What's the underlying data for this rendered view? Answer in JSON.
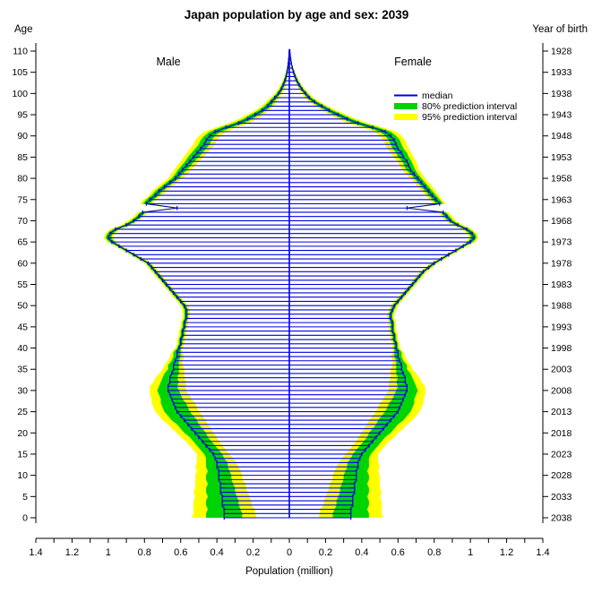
{
  "title": "Japan population by age and sex: 2039",
  "labels": {
    "age_axis": "Age",
    "birth_axis": "Year of birth",
    "x_axis": "Population (million)",
    "male": "Male",
    "female": "Female"
  },
  "legend": [
    {
      "label": "median",
      "color": "#0000e0",
      "type": "line"
    },
    {
      "label": "80% prediction interval",
      "color": "#00d400",
      "type": "band"
    },
    {
      "label": "95% prediction interval",
      "color": "#ffff00",
      "type": "band"
    }
  ],
  "chart_data": {
    "type": "population-pyramid",
    "title": "Japan population by age and sex: 2039",
    "year": 2039,
    "units": "million",
    "xlabel": "Population (million)",
    "age_min": 0,
    "age_max": 110,
    "age_tick_step": 5,
    "birth_year_age0": 2038,
    "x_max": 1.4,
    "x_tick_labels": [
      "1.4",
      "1.2",
      "1",
      "0.8",
      "0.6",
      "0.4",
      "0.2",
      "0",
      "0.2",
      "0.4",
      "0.6",
      "0.8",
      "1",
      "1.2",
      "1.4"
    ],
    "colors": {
      "median": "#0000e0",
      "band80": "#00d400",
      "band95": "#ffff00"
    },
    "male_median": [
      0.36,
      0.36,
      0.36,
      0.37,
      0.37,
      0.37,
      0.38,
      0.38,
      0.38,
      0.39,
      0.39,
      0.39,
      0.4,
      0.4,
      0.41,
      0.42,
      0.44,
      0.46,
      0.48,
      0.5,
      0.52,
      0.54,
      0.56,
      0.58,
      0.6,
      0.62,
      0.63,
      0.64,
      0.65,
      0.66,
      0.67,
      0.67,
      0.66,
      0.66,
      0.65,
      0.64,
      0.64,
      0.63,
      0.62,
      0.62,
      0.61,
      0.6,
      0.6,
      0.59,
      0.59,
      0.58,
      0.58,
      0.57,
      0.57,
      0.57,
      0.58,
      0.6,
      0.62,
      0.64,
      0.66,
      0.68,
      0.7,
      0.72,
      0.74,
      0.76,
      0.78,
      0.82,
      0.86,
      0.9,
      0.94,
      0.98,
      1.0,
      0.99,
      0.96,
      0.9,
      0.86,
      0.83,
      0.81,
      0.62,
      0.79,
      0.77,
      0.74,
      0.72,
      0.69,
      0.66,
      0.63,
      0.61,
      0.59,
      0.57,
      0.55,
      0.53,
      0.51,
      0.49,
      0.47,
      0.46,
      0.44,
      0.41,
      0.35,
      0.28,
      0.23,
      0.19,
      0.15,
      0.12,
      0.1,
      0.08,
      0.06,
      0.045,
      0.034,
      0.025,
      0.018,
      0.013,
      0.009,
      0.006,
      0.004,
      0.002,
      0.001
    ],
    "female_median": [
      0.34,
      0.34,
      0.34,
      0.35,
      0.35,
      0.35,
      0.36,
      0.36,
      0.36,
      0.37,
      0.37,
      0.37,
      0.38,
      0.38,
      0.39,
      0.4,
      0.42,
      0.44,
      0.46,
      0.48,
      0.5,
      0.52,
      0.54,
      0.56,
      0.58,
      0.6,
      0.61,
      0.62,
      0.63,
      0.64,
      0.65,
      0.65,
      0.64,
      0.64,
      0.63,
      0.62,
      0.62,
      0.61,
      0.6,
      0.6,
      0.59,
      0.59,
      0.58,
      0.58,
      0.57,
      0.57,
      0.57,
      0.56,
      0.56,
      0.57,
      0.58,
      0.6,
      0.62,
      0.64,
      0.66,
      0.68,
      0.7,
      0.72,
      0.74,
      0.77,
      0.8,
      0.84,
      0.88,
      0.92,
      0.96,
      1.0,
      1.02,
      1.01,
      0.98,
      0.93,
      0.89,
      0.87,
      0.85,
      0.65,
      0.83,
      0.81,
      0.79,
      0.77,
      0.75,
      0.73,
      0.71,
      0.69,
      0.67,
      0.66,
      0.65,
      0.63,
      0.62,
      0.6,
      0.59,
      0.58,
      0.56,
      0.53,
      0.46,
      0.38,
      0.32,
      0.27,
      0.22,
      0.18,
      0.14,
      0.11,
      0.09,
      0.07,
      0.055,
      0.042,
      0.032,
      0.024,
      0.017,
      0.012,
      0.008,
      0.005,
      0.003
    ],
    "hw80": [
      0.1,
      0.1,
      0.09,
      0.09,
      0.09,
      0.08,
      0.08,
      0.08,
      0.07,
      0.07,
      0.07,
      0.06,
      0.06,
      0.06,
      0.05,
      0.05,
      0.05,
      0.05,
      0.05,
      0.05,
      0.06,
      0.06,
      0.06,
      0.07,
      0.07,
      0.07,
      0.07,
      0.07,
      0.06,
      0.06,
      0.06,
      0.05,
      0.05,
      0.04,
      0.04,
      0.03,
      0.03,
      0.02,
      0.02,
      0.02,
      0.01,
      0.01,
      0.01,
      0.01,
      0.01,
      0.01,
      0.01,
      0.01,
      0.01,
      0.01,
      0.01,
      0.01,
      0.01,
      0.01,
      0.01,
      0.01,
      0.01,
      0.01,
      0.01,
      0.01,
      0.01,
      0.01,
      0.01,
      0.01,
      0.01,
      0.015,
      0.015,
      0.015,
      0.015,
      0.015,
      0.015,
      0.015,
      0.015,
      0.015,
      0.02,
      0.02,
      0.02,
      0.02,
      0.02,
      0.02,
      0.02,
      0.02,
      0.025,
      0.025,
      0.025,
      0.03,
      0.03,
      0.03,
      0.03,
      0.03,
      0.03,
      0.03,
      0.03,
      0.03,
      0.025,
      0.025,
      0.02,
      0.02,
      0.015,
      0.012,
      0.01,
      0.009,
      0.008,
      0.007,
      0.006,
      0.005,
      0.004,
      0.003,
      0.002,
      0.002,
      0.001
    ],
    "hw95": [
      0.18,
      0.17,
      0.17,
      0.16,
      0.16,
      0.15,
      0.15,
      0.14,
      0.14,
      0.13,
      0.13,
      0.12,
      0.12,
      0.11,
      0.1,
      0.09,
      0.09,
      0.09,
      0.09,
      0.1,
      0.1,
      0.11,
      0.11,
      0.12,
      0.12,
      0.12,
      0.12,
      0.12,
      0.11,
      0.11,
      0.1,
      0.1,
      0.09,
      0.08,
      0.07,
      0.06,
      0.05,
      0.04,
      0.04,
      0.03,
      0.02,
      0.02,
      0.02,
      0.02,
      0.02,
      0.02,
      0.02,
      0.02,
      0.02,
      0.02,
      0.02,
      0.02,
      0.02,
      0.02,
      0.02,
      0.02,
      0.02,
      0.02,
      0.02,
      0.02,
      0.02,
      0.02,
      0.02,
      0.02,
      0.02,
      0.025,
      0.025,
      0.025,
      0.03,
      0.03,
      0.03,
      0.03,
      0.03,
      0.03,
      0.035,
      0.035,
      0.035,
      0.04,
      0.04,
      0.04,
      0.04,
      0.045,
      0.045,
      0.05,
      0.05,
      0.055,
      0.055,
      0.06,
      0.06,
      0.06,
      0.06,
      0.06,
      0.055,
      0.055,
      0.05,
      0.045,
      0.04,
      0.035,
      0.03,
      0.025,
      0.02,
      0.018,
      0.015,
      0.012,
      0.01,
      0.008,
      0.006,
      0.005,
      0.004,
      0.003,
      0.002
    ]
  }
}
